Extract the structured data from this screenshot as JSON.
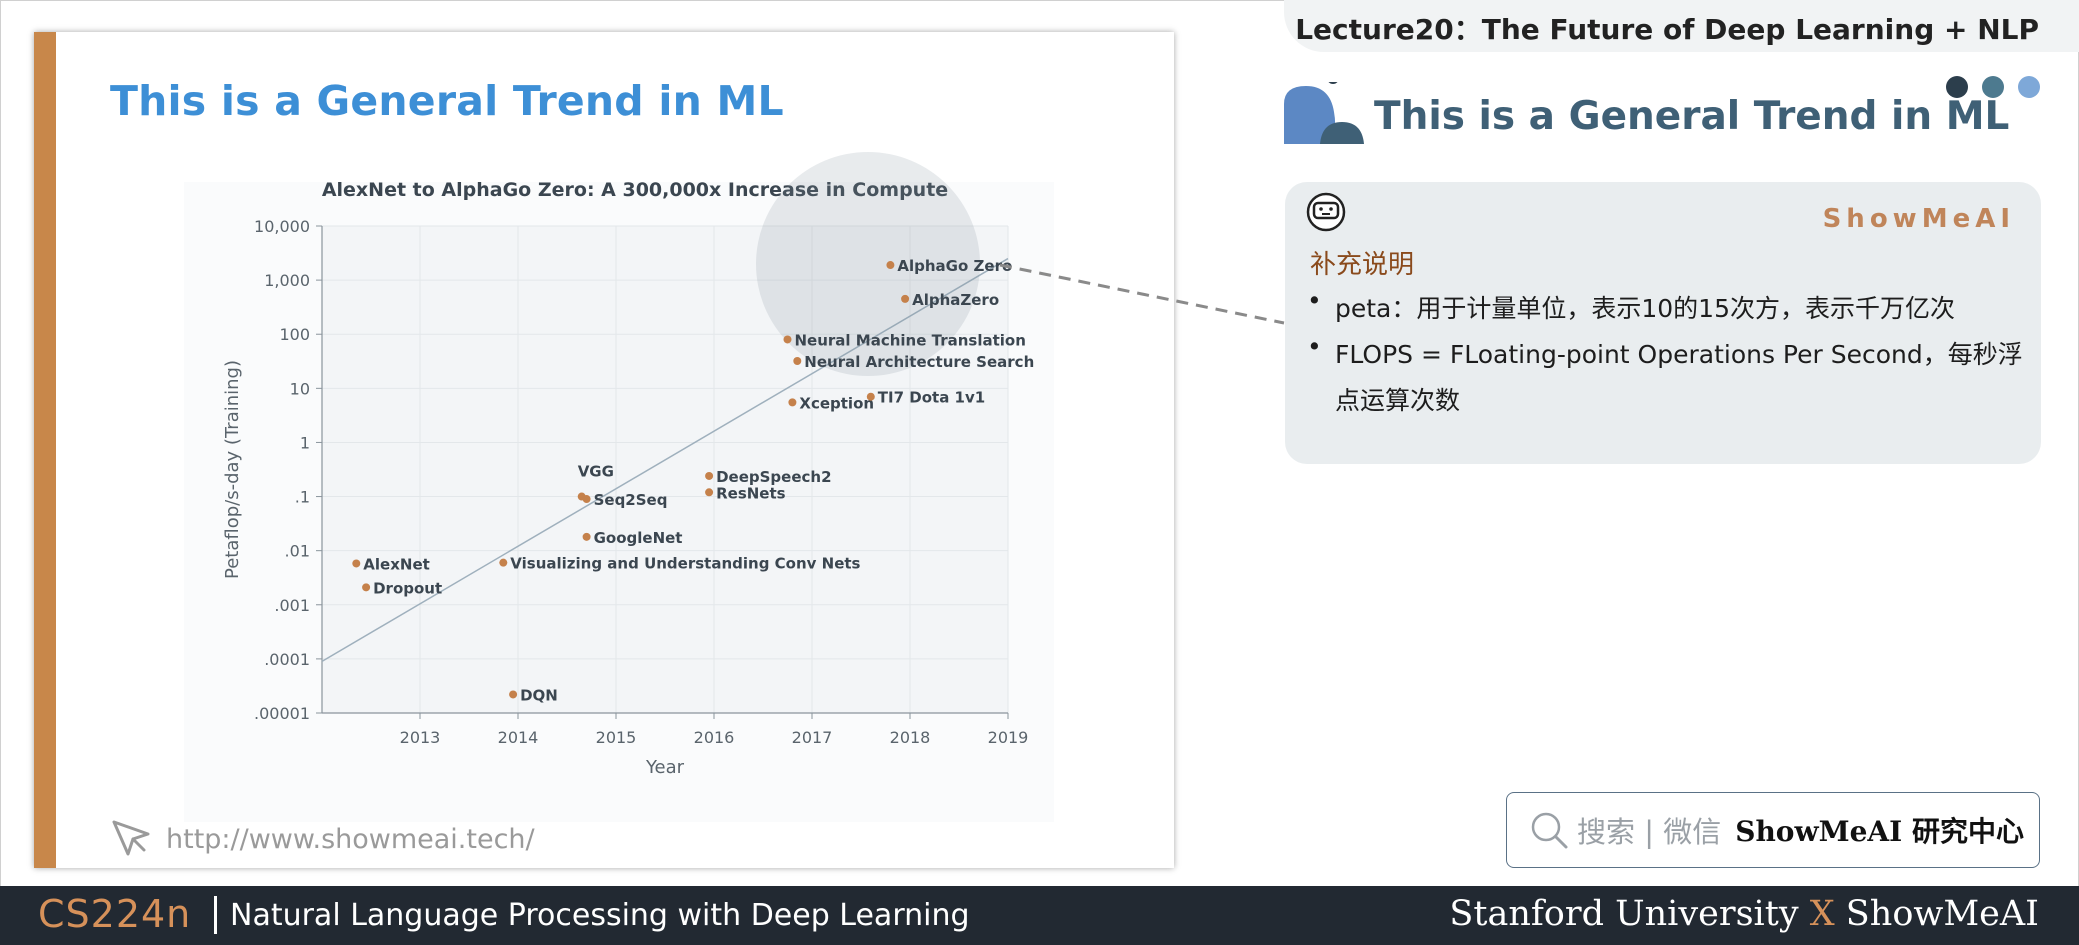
{
  "slide": {
    "title": "This is a General Trend in ML",
    "link": "http://www.showmeai.tech/"
  },
  "chart_data": {
    "type": "scatter",
    "title": "AlexNet to AlphaGo Zero: A 300,000x Increase in Compute",
    "xlabel": "Year",
    "ylabel": "Petaflop/s-day (Training)",
    "xlim": [
      2012.0,
      2019.0
    ],
    "ylim": [
      1e-05,
      10000
    ],
    "yscale": "log",
    "x_ticks": [
      "2013",
      "2014",
      "2015",
      "2016",
      "2017",
      "2018",
      "2019"
    ],
    "y_ticks": [
      "10,000",
      "1,000",
      "100",
      "10",
      "1",
      ".1",
      ".01",
      ".001",
      ".0001",
      ".00001"
    ],
    "grid": true,
    "trend_line": {
      "x": [
        2012.0,
        2019.0
      ],
      "y": [
        9e-05,
        2500
      ]
    },
    "series": [
      {
        "points": [
          {
            "label": "AlexNet",
            "x": 2012.35,
            "y": 0.0058
          },
          {
            "label": "Dropout",
            "x": 2012.45,
            "y": 0.0021
          },
          {
            "label": "DQN",
            "x": 2013.95,
            "y": 2.2e-05
          },
          {
            "label": "Visualizing and Understanding Conv Nets",
            "x": 2013.85,
            "y": 0.006
          },
          {
            "label": "VGG",
            "x": 2014.65,
            "y": 0.1
          },
          {
            "label": "Seq2Seq",
            "x": 2014.7,
            "y": 0.09
          },
          {
            "label": "GoogleNet",
            "x": 2014.7,
            "y": 0.018
          },
          {
            "label": "DeepSpeech2",
            "x": 2015.95,
            "y": 0.24
          },
          {
            "label": "ResNets",
            "x": 2015.95,
            "y": 0.12
          },
          {
            "label": "Neural Machine Translation",
            "x": 2016.75,
            "y": 80
          },
          {
            "label": "Neural Architecture Search",
            "x": 2016.85,
            "y": 32
          },
          {
            "label": "Xception",
            "x": 2016.8,
            "y": 5.5
          },
          {
            "label": "TI7 Dota 1v1",
            "x": 2017.6,
            "y": 7
          },
          {
            "label": "AlphaZero",
            "x": 2017.95,
            "y": 450
          },
          {
            "label": "AlphaGo Zero",
            "x": 2017.8,
            "y": 1900
          }
        ]
      }
    ],
    "colors": {
      "point": "#c5814b",
      "text": "#3b4650",
      "axis": "#8a949c",
      "grid": "#e3e7ea",
      "plot_bg": "#f3f5f7",
      "line": "#9fb0bd"
    }
  },
  "header": {
    "lecture_title": "Lecture20：The Future of Deep Learning + NLP",
    "section_title": "This is a General Trend in ML",
    "dot_colors": [
      "#2c3e4c",
      "#4d7a8f",
      "#7ea8d8"
    ]
  },
  "note": {
    "brand": "ShowMeAI",
    "heading": "补充说明",
    "bullets": [
      "peta：用于计量单位，表示10的15次方，表示千万亿次",
      "FLOPS = FLoating-point Operations Per Second，每秒浮点运算次数"
    ],
    "icon": "robot-face-icon"
  },
  "search": {
    "placeholder": "搜索 | 微信",
    "brand": "ShowMeAI 研究中心",
    "icon": "search-icon"
  },
  "footer": {
    "course_code": "CS224n",
    "course_name": "Natural Language Processing with Deep Learning",
    "right_a": "Stanford University",
    "right_x": "X",
    "right_b": "ShowMeAI"
  }
}
